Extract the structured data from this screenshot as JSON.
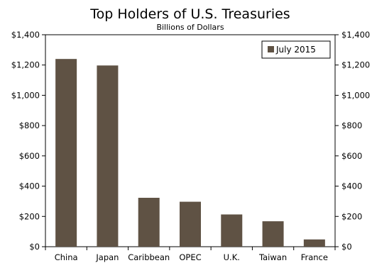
{
  "chart_data": {
    "type": "bar",
    "title": "Top Holders of U.S. Treasuries",
    "subtitle": "Billions of Dollars",
    "categories": [
      "China",
      "Japan",
      "Caribbean",
      "OPEC",
      "U.K.",
      "Taiwan",
      "France"
    ],
    "series": [
      {
        "name": "July 2015",
        "values": [
          1240,
          1197,
          323,
          297,
          213,
          168,
          48
        ],
        "color": "#5f5244"
      }
    ],
    "ylim": [
      0,
      1400
    ],
    "yticks": [
      0,
      200,
      400,
      600,
      800,
      1000,
      1200,
      1400
    ],
    "ytick_labels": [
      "$0",
      "$200",
      "$400",
      "$600",
      "$800",
      "$1,000",
      "$1,200",
      "$1,400"
    ],
    "right_axis": true,
    "grid": false,
    "legend": {
      "position": "top-right",
      "entries": [
        "July 2015"
      ]
    }
  }
}
